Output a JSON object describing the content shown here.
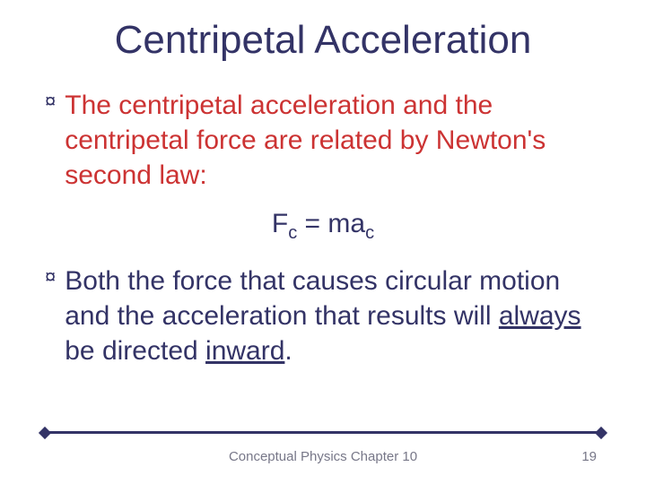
{
  "title": "Centripetal Acceleration",
  "bullets": {
    "first": "The centripetal acceleration and the centripetal force are related by Newton's second law:",
    "second_pre": "Both the force that causes circular motion and the acceleration that results will ",
    "second_underlined1": "always",
    "second_mid": " be directed ",
    "second_underlined2": "inward",
    "second_post": "."
  },
  "equation": {
    "lhs": "F",
    "lhs_sub": "c",
    "eq": " = ma",
    "rhs_sub": "c"
  },
  "footer": {
    "center": "Conceptual Physics  Chapter 10",
    "page": "19"
  },
  "colors": {
    "title": "#333366",
    "red": "#cc3333",
    "navy": "#333366",
    "footer": "#777788",
    "background": "#ffffff"
  },
  "typography": {
    "title_fontsize": 44,
    "body_fontsize": 30,
    "equation_fontsize": 30,
    "footer_fontsize": 15,
    "font_family": "Comic Sans MS"
  },
  "bullet_glyph": "¤"
}
